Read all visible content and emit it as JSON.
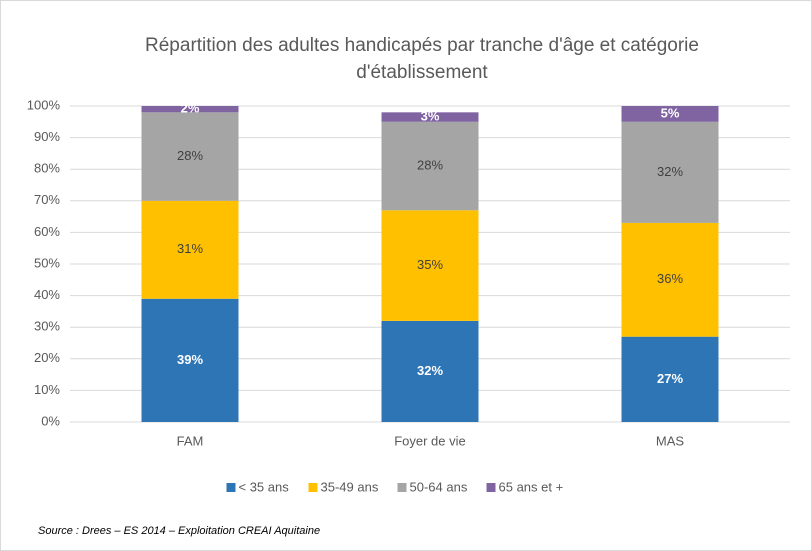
{
  "chart_data": {
    "type": "stacked_bar",
    "title": [
      "Répartition des adultes handicapés par tranche d'âge et catégorie",
      "d'établissement"
    ],
    "categories": [
      "FAM",
      "Foyer de vie",
      "MAS"
    ],
    "series": [
      {
        "name": "< 35 ans",
        "color": "#2e75b6",
        "values": [
          39,
          32,
          27
        ],
        "value_labels": [
          "39%",
          "32%",
          "27%"
        ]
      },
      {
        "name": "35-49 ans",
        "color": "#ffc000",
        "values": [
          31,
          35,
          36
        ],
        "value_labels": [
          "31%",
          "35%",
          "36%"
        ]
      },
      {
        "name": "50-64 ans",
        "color": "#a5a5a5",
        "values": [
          28,
          28,
          32
        ],
        "value_labels": [
          "28%",
          "28%",
          "32%"
        ]
      },
      {
        "name": "65 ans et +",
        "color": "#8064a2",
        "values": [
          2,
          3,
          5
        ],
        "value_labels": [
          "2%",
          "3%",
          "5%"
        ]
      }
    ],
    "ylim": [
      0,
      100
    ],
    "yticks": [
      {
        "value": 0,
        "label": "0%"
      },
      {
        "value": 10,
        "label": "10%"
      },
      {
        "value": 20,
        "label": "20%"
      },
      {
        "value": 30,
        "label": "30%"
      },
      {
        "value": 40,
        "label": "40%"
      },
      {
        "value": 50,
        "label": "50%"
      },
      {
        "value": 60,
        "label": "60%"
      },
      {
        "value": 70,
        "label": "70%"
      },
      {
        "value": 80,
        "label": "80%"
      },
      {
        "value": 90,
        "label": "90%"
      },
      {
        "value": 100,
        "label": "100%"
      }
    ],
    "grid": true,
    "legend": "bottom",
    "source": "Source : Drees – ES 2014 – Exploitation CREAI Aquitaine"
  }
}
